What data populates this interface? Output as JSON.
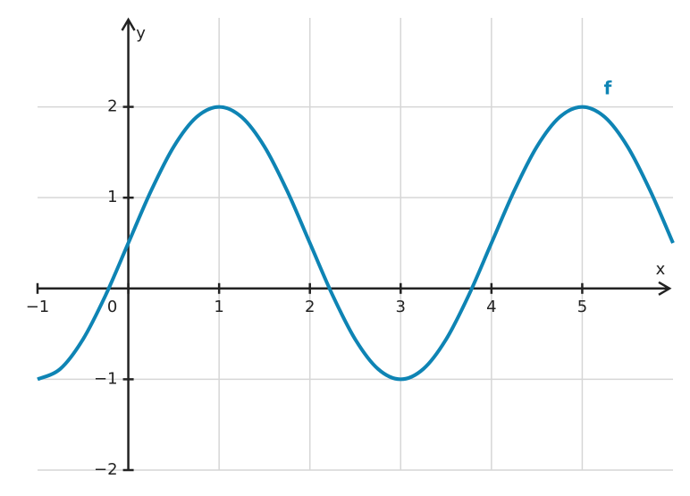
{
  "chart_data": {
    "type": "line",
    "x": [
      -1,
      -0.75,
      -0.5,
      -0.25,
      0,
      0.25,
      0.5,
      0.75,
      1,
      1.25,
      1.5,
      1.75,
      2,
      2.25,
      2.5,
      2.75,
      3,
      3.25,
      3.5,
      3.75,
      4,
      4.25,
      4.5,
      4.75,
      5,
      5.25,
      5.5,
      5.75,
      6
    ],
    "series": [
      {
        "name": "f",
        "color": "#0e84b4",
        "values": [
          -1,
          -0.886,
          -0.561,
          -0.074,
          0.5,
          1.074,
          1.561,
          1.886,
          2,
          1.886,
          1.561,
          1.074,
          0.5,
          -0.074,
          -0.561,
          -0.886,
          -1,
          -0.886,
          -0.561,
          -0.074,
          0.5,
          1.074,
          1.561,
          1.886,
          2,
          1.886,
          1.561,
          1.074,
          0.5
        ]
      }
    ],
    "xlabel": "x",
    "ylabel": "y",
    "xlim": [
      -1,
      6
    ],
    "ylim": [
      -2,
      2.98
    ],
    "xticks": [
      {
        "value": -1,
        "label": "−1"
      },
      0,
      1,
      2,
      3,
      4,
      5
    ],
    "yticks": [
      {
        "value": -2,
        "label": "−2"
      },
      {
        "value": -1,
        "label": "−1"
      },
      1,
      2
    ],
    "grid": true
  }
}
